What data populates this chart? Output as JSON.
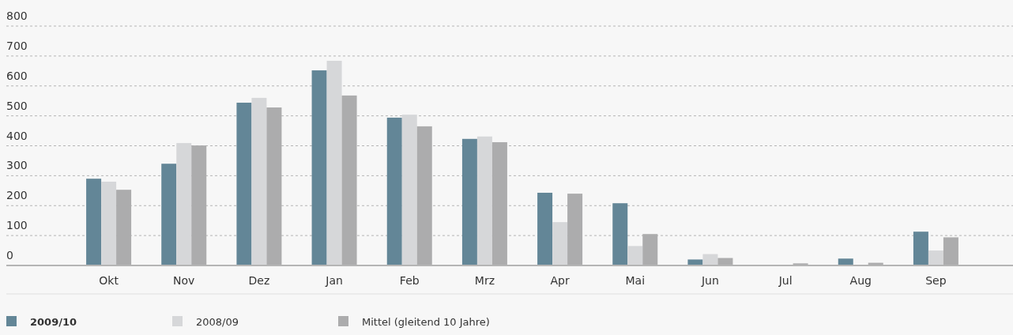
{
  "chart_data": {
    "type": "bar",
    "categories": [
      "Okt",
      "Nov",
      "Dez",
      "Jan",
      "Feb",
      "Mrz",
      "Apr",
      "Mai",
      "Jun",
      "Jul",
      "Aug",
      "Sep"
    ],
    "series": [
      {
        "name": "2009/10",
        "color": "#638697",
        "values": [
          290,
          340,
          544,
          652,
          494,
          423,
          243,
          208,
          20,
          0,
          23,
          113
        ]
      },
      {
        "name": "2008/09",
        "color": "#d6d7d9",
        "values": [
          280,
          409,
          560,
          684,
          504,
          431,
          145,
          65,
          38,
          0,
          0,
          50
        ]
      },
      {
        "name": "Mittel (gleitend 10 Jahre)",
        "color": "#acacad",
        "values": [
          253,
          401,
          528,
          568,
          465,
          412,
          240,
          105,
          25,
          7,
          9,
          94
        ]
      }
    ],
    "ylim": [
      0,
      800
    ],
    "yticks": [
      0,
      100,
      200,
      300,
      400,
      500,
      600,
      700,
      800
    ],
    "grid": "y",
    "legend": "bottom"
  }
}
